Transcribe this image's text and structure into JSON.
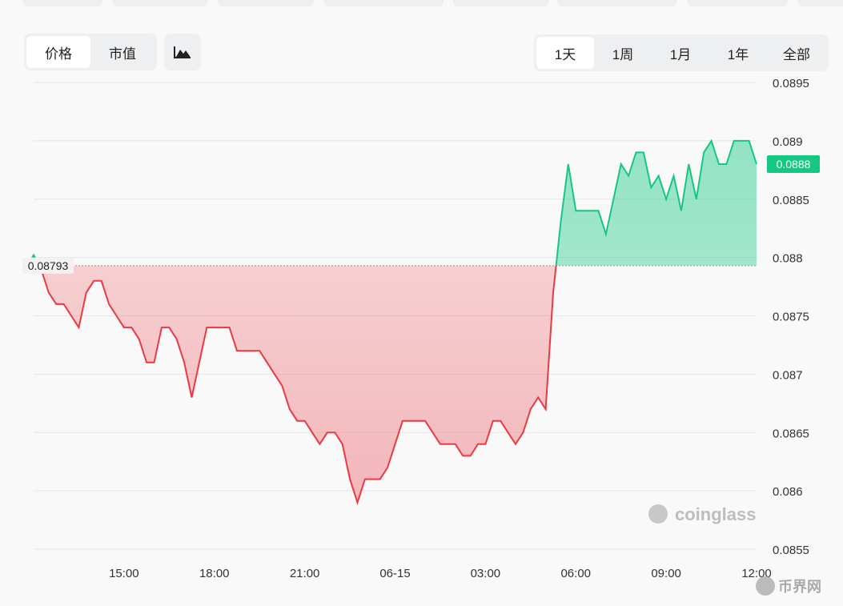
{
  "ui": {
    "tabs": [
      "价格",
      "市值"
    ],
    "ranges": [
      "1天",
      "1周",
      "1月",
      "1年",
      "全部"
    ],
    "watermark": "coinglass",
    "badge": "币界网"
  },
  "chart_data": {
    "type": "line",
    "categories": [
      null,
      null,
      null,
      null,
      null,
      null,
      null,
      null,
      null,
      null,
      null,
      null,
      "15:00",
      null,
      null,
      null,
      null,
      null,
      null,
      null,
      null,
      null,
      null,
      null,
      "18:00",
      null,
      null,
      null,
      null,
      null,
      null,
      null,
      null,
      null,
      null,
      null,
      "21:00",
      null,
      null,
      null,
      null,
      null,
      null,
      null,
      null,
      null,
      null,
      null,
      "06-15",
      null,
      null,
      null,
      null,
      null,
      null,
      null,
      null,
      null,
      null,
      null,
      "03:00",
      null,
      null,
      null,
      null,
      null,
      null,
      null,
      null,
      null,
      null,
      null,
      "06:00",
      null,
      null,
      null,
      null,
      null,
      null,
      null,
      null,
      null,
      null,
      null,
      "09:00",
      null,
      null,
      null,
      null,
      null,
      null,
      null,
      null,
      null,
      null,
      null,
      "12:00"
    ],
    "series": [
      {
        "values": [
          0.088,
          0.0879,
          0.0877,
          0.0876,
          0.0876,
          0.0875,
          0.0874,
          0.0877,
          0.0878,
          0.0878,
          0.0876,
          0.0875,
          0.0874,
          0.0874,
          0.0873,
          0.0871,
          0.0871,
          0.0874,
          0.0874,
          0.0873,
          0.0871,
          0.0868,
          0.0871,
          0.0874,
          0.0874,
          0.0874,
          0.0874,
          0.0872,
          0.0872,
          0.0872,
          0.0872,
          0.0871,
          0.087,
          0.0869,
          0.0867,
          0.0866,
          0.0866,
          0.0865,
          0.0864,
          0.0865,
          0.0865,
          0.0864,
          0.0861,
          0.0859,
          0.0861,
          0.0861,
          0.0861,
          0.0862,
          0.0864,
          0.0866,
          0.0866,
          0.0866,
          0.0866,
          0.0865,
          0.0864,
          0.0864,
          0.0864,
          0.0863,
          0.0863,
          0.0864,
          0.0864,
          0.0866,
          0.0866,
          0.0865,
          0.0864,
          0.0865,
          0.0867,
          0.0868,
          0.0867,
          0.0877,
          0.0883,
          0.0888,
          0.0884,
          0.0884,
          0.0884,
          0.0884,
          0.0882,
          0.0885,
          0.0888,
          0.0887,
          0.0889,
          0.0889,
          0.0886,
          0.0887,
          0.0885,
          0.0887,
          0.0884,
          0.0888,
          0.0885,
          0.0889,
          0.089,
          0.0888,
          0.0888,
          0.089,
          0.089,
          0.089,
          0.0888
        ]
      }
    ],
    "baseline": 0.08793,
    "up_color": "#16c784",
    "down_color": "#ea3943",
    "ylim": [
      0.0855,
      0.0895
    ],
    "yticks": [
      0.0855,
      0.086,
      0.0865,
      0.087,
      0.0875,
      0.088,
      0.0885,
      0.089,
      0.0895
    ],
    "grid": true
  }
}
